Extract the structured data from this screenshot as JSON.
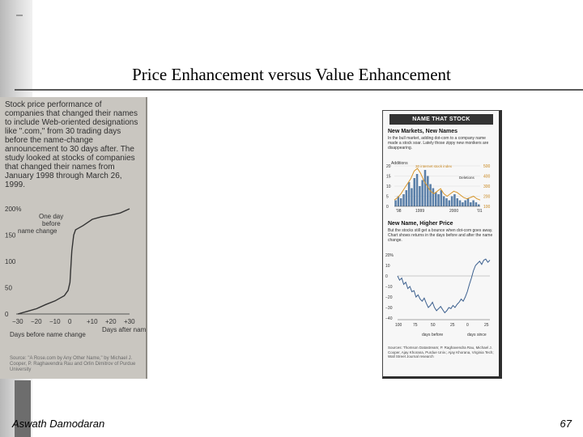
{
  "slide": {
    "title": "Price Enhancement versus Value Enhancement",
    "author": "Aswath Damodaran",
    "page_number": "67"
  },
  "left_clipping": {
    "caption": "Stock price performance of companies that changed their names to include Web-oriented designations like \".com,\" from 30 trading days before the name-change announcement to 30 days after. The study looked at stocks of companies that changed their names from January 1998 through March 26, 1999.",
    "annotation_top": "One day before name change",
    "x_label_left": "Days before name change",
    "x_label_right": "Days after name change",
    "source": "Source: \"A Rose.com by Any Other Name,\" by Michael J. Cooper, P. Raghavendra Rau and Orlin Dimitrov of Purdue University",
    "chart_data": {
      "type": "line",
      "x": [
        -30,
        -25,
        -20,
        -15,
        -10,
        -5,
        -3,
        -2,
        -1,
        0,
        1,
        2,
        5,
        10,
        15,
        20,
        25,
        30
      ],
      "y": [
        0,
        5,
        10,
        18,
        25,
        35,
        45,
        60,
        120,
        150,
        160,
        162,
        168,
        180,
        185,
        188,
        192,
        200
      ],
      "y_ticks": [
        "200%",
        "150",
        "100",
        "50",
        "0"
      ],
      "x_ticks": [
        "−30",
        "−20",
        "−10",
        "0",
        "+10",
        "+20",
        "+30"
      ],
      "ylim": [
        0,
        200
      ],
      "xlim": [
        -30,
        30
      ]
    }
  },
  "right_clipping": {
    "banner": "NAME THAT STOCK",
    "head1": "New Markets, New Names",
    "body1": "In the bull market, adding dot-com to a company name made a stock soar. Lately those zippy new monikers are disappearing.",
    "chart1_label_a": "Additions",
    "chart1_label_b": "30 internet stock index",
    "chart1_label_c": "Deletions",
    "chart1_left_ticks": [
      "20",
      "15",
      "10",
      "5",
      "0"
    ],
    "chart1_right_ticks": [
      "500",
      "400",
      "300",
      "200",
      "100"
    ],
    "chart1_x_ticks": [
      "'98",
      "1999",
      "2000",
      "'01"
    ],
    "head2": "New Name, Higher Price",
    "body2": "But the stocks still get a bounce when dot-com goes away. Chart shows returns in the days before and after the name change.",
    "chart2_data": {
      "type": "line",
      "y_ticks": [
        "20%",
        "10",
        "0",
        "−10",
        "−20",
        "−30",
        "−40"
      ],
      "x_ticks": [
        "100",
        "75",
        "50",
        "25",
        "0",
        "25"
      ],
      "x_label_left": "days before",
      "x_label_right": "days since",
      "ylim": [
        -40,
        20
      ]
    },
    "sources": "Sources: Thomson Datastream; P. Raghavendra Rau, Michael J. Cooper, Ajay Khorana, Purdue Univ.; Ajay Khorana, Virginia Tech; Wall Street Journal research"
  }
}
